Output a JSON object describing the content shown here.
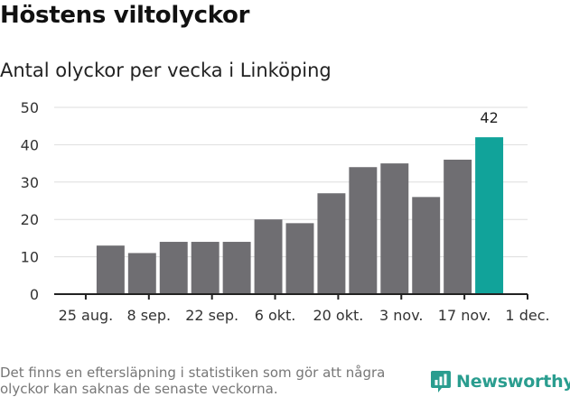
{
  "title": "Höstens viltolyckor",
  "subtitle": "Antal olyckor per vecka i Linköping",
  "footnote": "Det finns en eftersläpning i statistiken som gör att några olyckor kan saknas de senaste veckorna.",
  "brand": {
    "name": "Newsworthy",
    "icon": "newsworthy-logo-icon",
    "color": "#2a9d8f"
  },
  "colors": {
    "bar": "#6f6e72",
    "highlight": "#11a39a",
    "grid": "#dddddd",
    "axis": "#222222"
  },
  "chart_data": {
    "type": "bar",
    "x_unit": "week starting",
    "ylim": [
      0,
      50
    ],
    "yticks": [
      0,
      10,
      20,
      30,
      40,
      50
    ],
    "xlim": [
      "2018-08-18",
      "2018-12-01"
    ],
    "xticks": [
      {
        "date": "2018-08-25",
        "label": "25 aug."
      },
      {
        "date": "2018-09-08",
        "label": "8 sep."
      },
      {
        "date": "2018-09-22",
        "label": "22 sep."
      },
      {
        "date": "2018-10-06",
        "label": "6 okt."
      },
      {
        "date": "2018-10-20",
        "label": "20 okt."
      },
      {
        "date": "2018-11-03",
        "label": "3 nov."
      },
      {
        "date": "2018-11-17",
        "label": "17 nov."
      },
      {
        "date": "2018-12-01",
        "label": "1 dec."
      }
    ],
    "bars": [
      {
        "week": "2018-08-27",
        "value": 13
      },
      {
        "week": "2018-09-03",
        "value": 11
      },
      {
        "week": "2018-09-10",
        "value": 14
      },
      {
        "week": "2018-09-17",
        "value": 14
      },
      {
        "week": "2018-09-24",
        "value": 14
      },
      {
        "week": "2018-10-01",
        "value": 20
      },
      {
        "week": "2018-10-08",
        "value": 19
      },
      {
        "week": "2018-10-15",
        "value": 27
      },
      {
        "week": "2018-10-22",
        "value": 34
      },
      {
        "week": "2018-10-29",
        "value": 35
      },
      {
        "week": "2018-11-05",
        "value": 26
      },
      {
        "week": "2018-11-12",
        "value": 36
      },
      {
        "week": "2018-11-19",
        "value": 42,
        "highlight": true,
        "label": "42"
      }
    ],
    "grid": true
  }
}
